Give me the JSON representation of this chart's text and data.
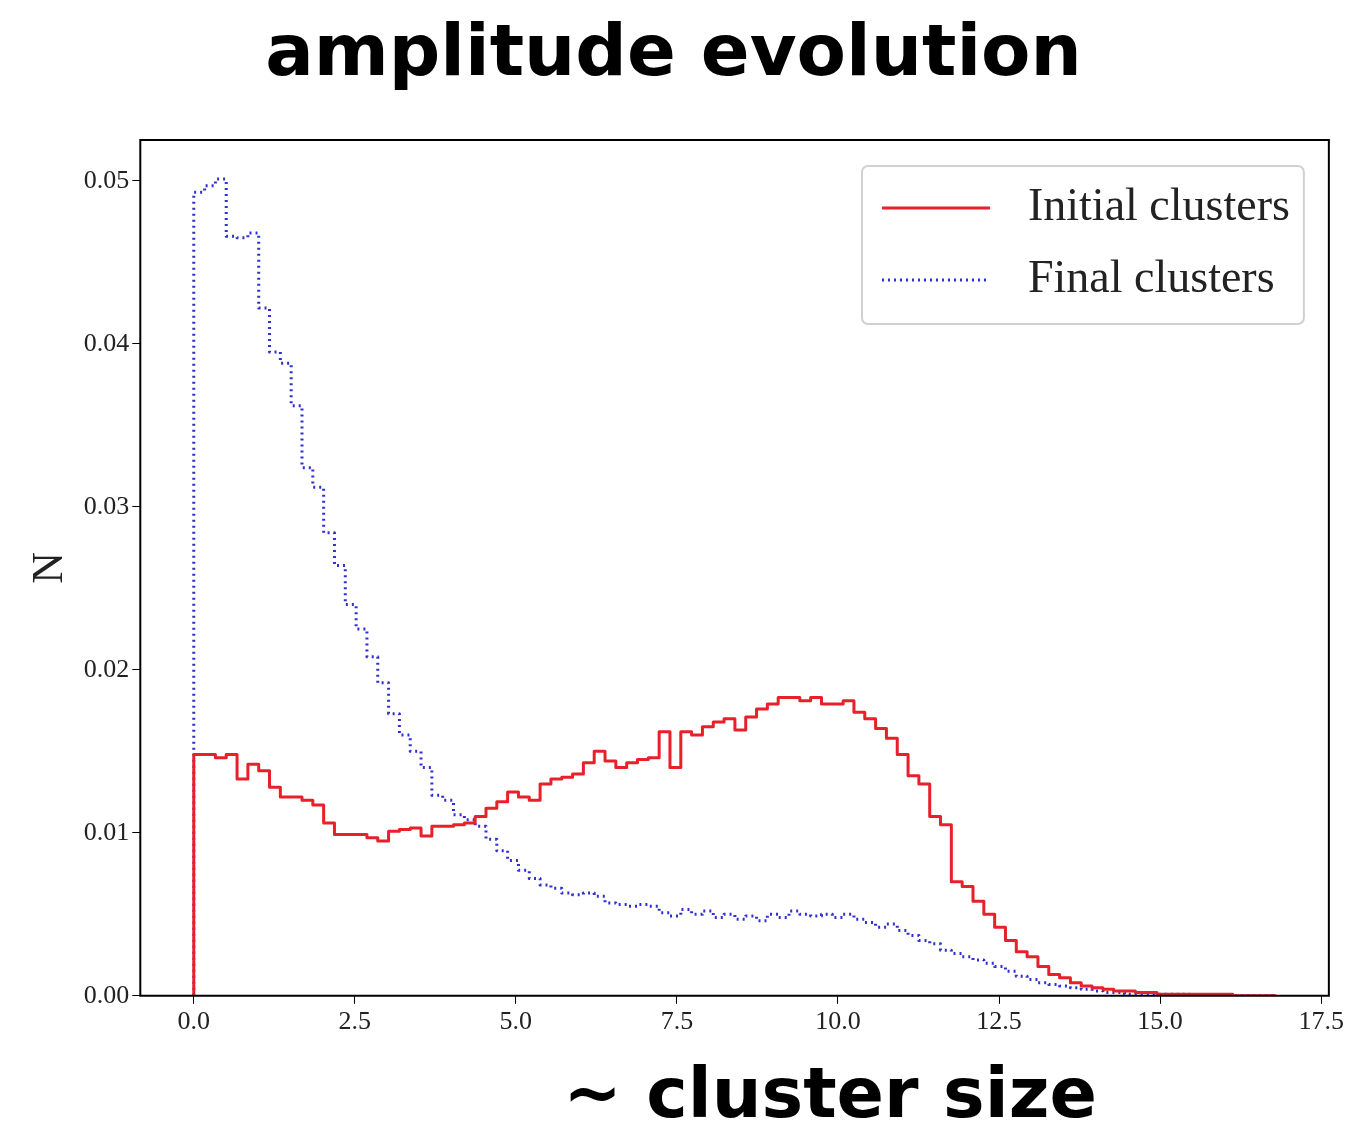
{
  "chart_data": {
    "type": "histogram",
    "title": "amplitude evolution",
    "ylabel": "N",
    "annotations": [
      "~ cluster size"
    ],
    "bins": [
      0,
      0.168,
      0.336,
      0.504,
      0.672,
      0.84,
      1.008,
      1.176,
      1.344,
      1.512,
      1.68,
      1.848,
      2.016,
      2.184,
      2.352,
      2.52,
      2.688,
      2.856,
      3.024,
      3.192,
      3.36,
      3.528,
      3.696,
      3.864,
      4.032,
      4.2,
      4.368,
      4.536,
      4.704,
      4.872,
      5.04,
      5.208,
      5.376,
      5.544,
      5.712,
      5.88,
      6.048,
      6.216,
      6.384,
      6.552,
      6.72,
      6.888,
      7.056,
      7.224,
      7.392,
      7.56,
      7.728,
      7.896,
      8.064,
      8.232,
      8.4,
      8.568,
      8.736,
      8.904,
      9.072,
      9.24,
      9.408,
      9.576,
      9.744,
      9.912,
      10.08,
      10.248,
      10.416,
      10.584,
      10.752,
      10.92,
      11.088,
      11.256,
      11.424,
      11.592,
      11.76,
      11.928,
      12.096,
      12.264,
      12.432,
      12.6,
      12.768,
      12.936,
      13.104,
      13.272,
      13.44,
      13.608,
      13.776,
      13.944,
      14.112,
      14.28,
      14.448,
      14.616,
      14.784,
      14.952,
      15.12,
      15.288,
      15.456,
      15.624,
      15.792,
      15.96,
      16.128,
      16.296,
      16.464,
      16.632,
      16.8
    ],
    "series": [
      {
        "name": "Initial clusters",
        "color": "#e8202a",
        "line_style": "solid",
        "values": [
          0.0148,
          0.0148,
          0.0146,
          0.0148,
          0.0133,
          0.0142,
          0.0138,
          0.0128,
          0.0122,
          0.0122,
          0.012,
          0.0117,
          0.0106,
          0.0099,
          0.0099,
          0.0099,
          0.0097,
          0.0095,
          0.0101,
          0.0102,
          0.0103,
          0.0098,
          0.0104,
          0.0104,
          0.0105,
          0.0106,
          0.011,
          0.0115,
          0.0119,
          0.0125,
          0.0122,
          0.012,
          0.013,
          0.0133,
          0.0134,
          0.0136,
          0.0143,
          0.015,
          0.0144,
          0.014,
          0.0143,
          0.0145,
          0.0146,
          0.0162,
          0.014,
          0.0162,
          0.016,
          0.0165,
          0.0168,
          0.017,
          0.0163,
          0.0171,
          0.0176,
          0.0179,
          0.0183,
          0.0183,
          0.0181,
          0.0183,
          0.0179,
          0.0179,
          0.0181,
          0.0174,
          0.017,
          0.0164,
          0.0158,
          0.0148,
          0.0135,
          0.013,
          0.011,
          0.0105,
          0.007,
          0.0067,
          0.0058,
          0.005,
          0.0042,
          0.0034,
          0.0027,
          0.0024,
          0.0018,
          0.0013,
          0.0011,
          0.0008,
          0.0006,
          0.0005,
          0.0004,
          0.0003,
          0.0003,
          0.0002,
          0.0002,
          0.0001,
          0.0001,
          0.0001,
          0.0001,
          0.0001,
          0.0001,
          0.0001,
          0,
          0,
          0,
          0
        ]
      },
      {
        "name": "Final clusters",
        "color": "#3030d0",
        "line_style": "dotted",
        "values": [
          0.0493,
          0.0497,
          0.0501,
          0.0466,
          0.0465,
          0.0468,
          0.0422,
          0.0395,
          0.0388,
          0.0362,
          0.0324,
          0.0312,
          0.0284,
          0.0264,
          0.024,
          0.0225,
          0.0208,
          0.0192,
          0.0173,
          0.016,
          0.015,
          0.014,
          0.0123,
          0.012,
          0.0111,
          0.0108,
          0.0104,
          0.0096,
          0.0089,
          0.0083,
          0.0077,
          0.0072,
          0.0068,
          0.0066,
          0.0063,
          0.0062,
          0.0063,
          0.0061,
          0.0057,
          0.0056,
          0.0055,
          0.0056,
          0.0055,
          0.0051,
          0.0049,
          0.0053,
          0.005,
          0.0052,
          0.0048,
          0.005,
          0.0047,
          0.0049,
          0.0046,
          0.005,
          0.0048,
          0.0052,
          0.005,
          0.0049,
          0.005,
          0.0048,
          0.005,
          0.0047,
          0.0045,
          0.0042,
          0.0044,
          0.004,
          0.0037,
          0.0034,
          0.0032,
          0.0028,
          0.0026,
          0.0024,
          0.0022,
          0.002,
          0.0018,
          0.0015,
          0.0012,
          0.001,
          0.0008,
          0.0007,
          0.0006,
          0.0005,
          0.0004,
          0.0003,
          0.0002,
          0.0002,
          0.0001,
          0.0001,
          0.0001,
          0.0001,
          0.0001,
          0.0001,
          0,
          0,
          0,
          0,
          0,
          0,
          0,
          0
        ]
      }
    ],
    "xlim": [
      -0.83,
      17.62
    ],
    "ylim": [
      0,
      0.0525
    ],
    "xticks": [
      {
        "value": 0,
        "label": "0.0"
      },
      {
        "value": 2.5,
        "label": "2.5"
      },
      {
        "value": 5,
        "label": "5.0"
      },
      {
        "value": 7.5,
        "label": "7.5"
      },
      {
        "value": 10,
        "label": "10.0"
      },
      {
        "value": 12.5,
        "label": "12.5"
      },
      {
        "value": 15,
        "label": "15.0"
      },
      {
        "value": 17.5,
        "label": "17.5"
      }
    ],
    "yticks": [
      {
        "value": 0,
        "label": "0.00"
      },
      {
        "value": 0.01,
        "label": "0.01"
      },
      {
        "value": 0.02,
        "label": "0.02"
      },
      {
        "value": 0.03,
        "label": "0.03"
      },
      {
        "value": 0.04,
        "label": "0.04"
      },
      {
        "value": 0.05,
        "label": "0.05"
      }
    ],
    "legend": "top right",
    "grid": false
  }
}
